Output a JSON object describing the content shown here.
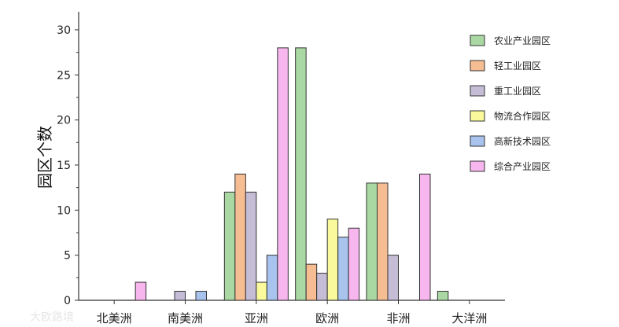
{
  "chart_data": {
    "type": "bar",
    "ylabel": "园区个数",
    "xlabel": "",
    "ylim": [
      0,
      32
    ],
    "yticks": [
      0,
      5,
      10,
      15,
      20,
      25,
      30
    ],
    "categories": [
      "北美洲",
      "南美洲",
      "亚洲",
      "欧洲",
      "非洲",
      "大洋洲"
    ],
    "legend_position": "top-right",
    "grid": false,
    "series": [
      {
        "name": "农业产业园区",
        "color": "#a9d8a2",
        "values": [
          0,
          0,
          12,
          28,
          13,
          1
        ]
      },
      {
        "name": "轻工业园区",
        "color": "#f6bd93",
        "values": [
          0,
          0,
          14,
          4,
          13,
          0
        ]
      },
      {
        "name": "重工业园区",
        "color": "#c5bcd6",
        "values": [
          0,
          1,
          12,
          3,
          5,
          0
        ]
      },
      {
        "name": "物流合作园区",
        "color": "#fafa9d",
        "values": [
          0,
          0,
          2,
          9,
          0,
          0
        ]
      },
      {
        "name": "高新技术园区",
        "color": "#a8c3ee",
        "values": [
          0,
          1,
          5,
          7,
          0,
          0
        ]
      },
      {
        "name": "综合产业园区",
        "color": "#f8b6ef",
        "values": [
          2,
          0,
          28,
          8,
          14,
          0
        ]
      }
    ]
  },
  "watermark": "大欧路境"
}
